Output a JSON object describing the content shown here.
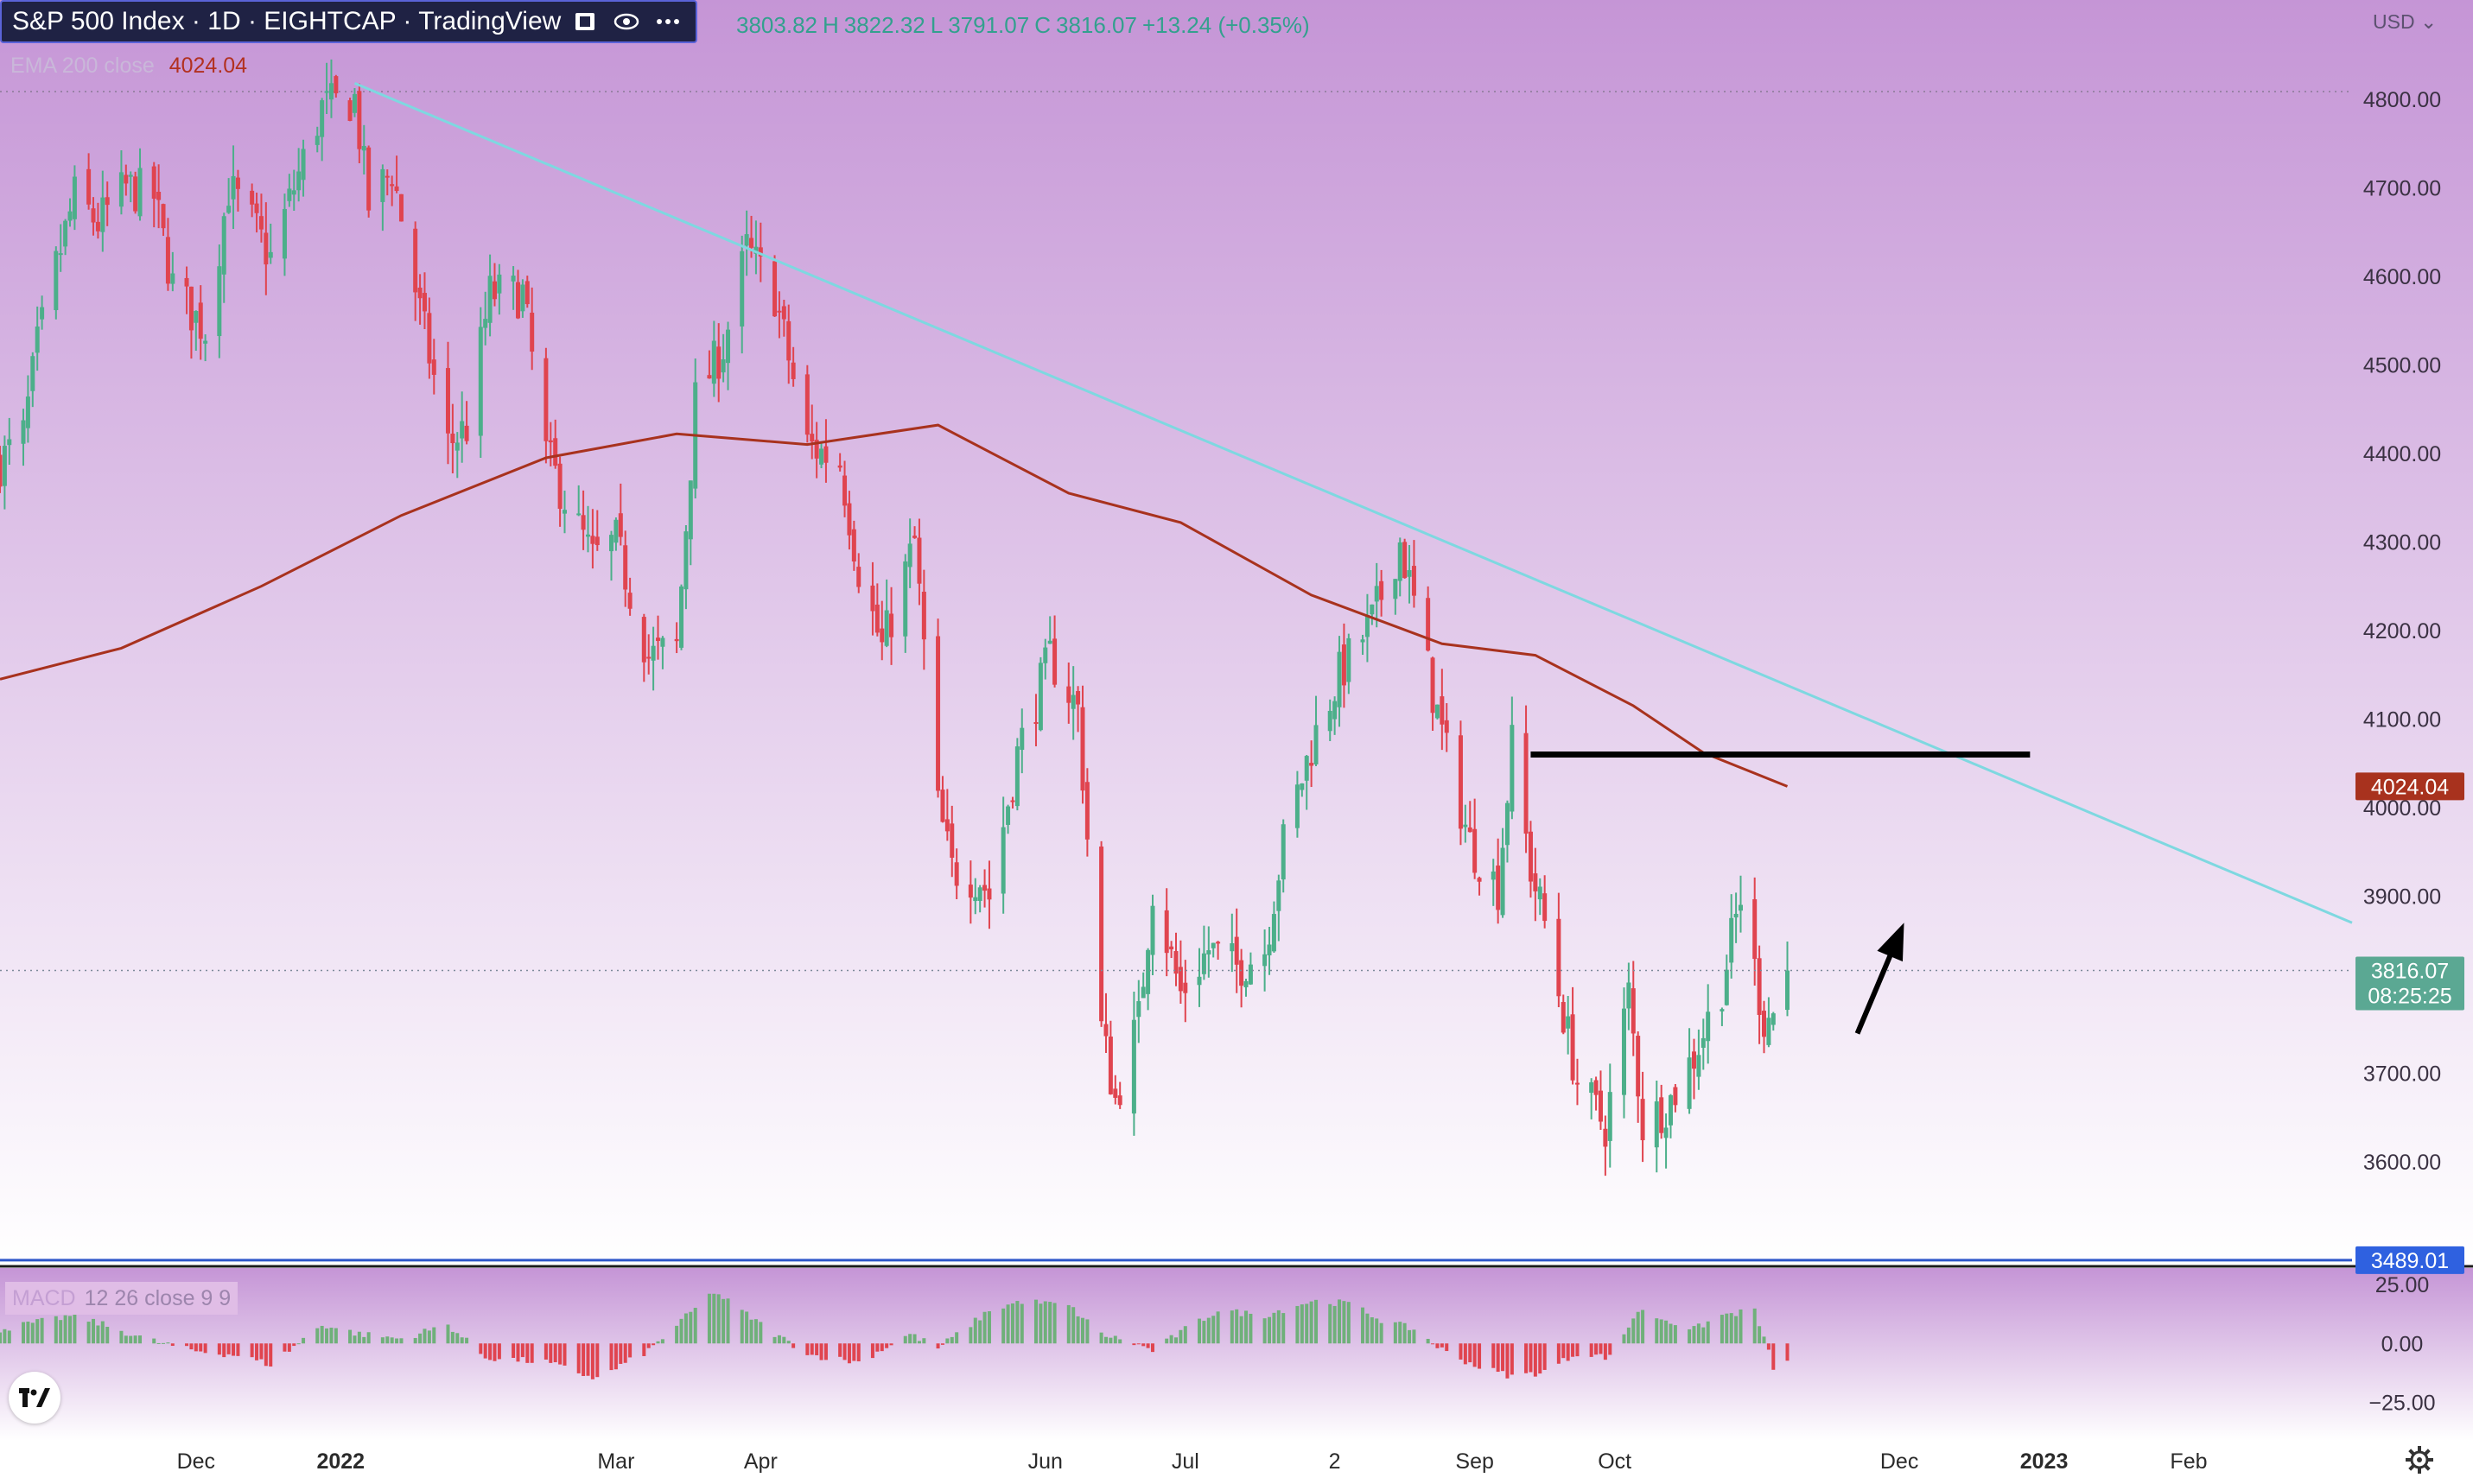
{
  "header": {
    "title": "S&P 500 Index · 1D · EIGHTCAP · TradingView",
    "icons": [
      "candle-style-icon",
      "eye-icon",
      "more-icon"
    ]
  },
  "ohlc": {
    "open_value": "3803.82",
    "high_value": "3822.32",
    "low_value": "3791.07",
    "close_value": "3816.07",
    "change": "+13.24 (+0.35%)"
  },
  "ema_legend": {
    "label": "EMA 200 close",
    "value": "4024.04"
  },
  "currency": "USD",
  "macd_legend": {
    "name": "MACD",
    "params": "12 26 close 9 9"
  },
  "colors": {
    "up": "#4caf8a",
    "down": "#e0444f",
    "ema": "#a8321e",
    "trendline": "#7ed8e0",
    "support": "#2e56c9",
    "resistance": "#000000",
    "bg_top": "#c595d6",
    "bg_bottom": "#ffffff"
  },
  "chart_data": {
    "type": "candlestick",
    "title": "S&P 500 Index · 1D · EIGHTCAP · TradingView",
    "x_tick_labels": [
      "Dec",
      "2022",
      "Mar",
      "Apr",
      "Jun",
      "Jul",
      "2",
      "Sep",
      "Oct",
      "Dec",
      "2023",
      "Feb"
    ],
    "x_tick_dates": [
      "2021-12-01",
      "2022-01-01",
      "2022-03-01",
      "2022-04-01",
      "2022-06-01",
      "2022-07-01",
      "2022-08-02",
      "2022-09-01",
      "2022-10-01",
      "2022-12-01",
      "2023-01-01",
      "2023-02-01"
    ],
    "xlim": [
      "2021-10-20",
      "2023-03-08"
    ],
    "y_ticks": [
      3600,
      3700,
      3800,
      3900,
      4000,
      4100,
      4200,
      4300,
      4400,
      4500,
      4600,
      4700,
      4800
    ],
    "y_tick_labels": [
      "3600.00",
      "3700.00",
      "3800.00",
      "3900.00",
      "4000.00",
      "4100.00",
      "4200.00",
      "4300.00",
      "4400.00",
      "4500.00",
      "4600.00",
      "4700.00",
      "4800.00"
    ],
    "ylim": [
      3483,
      4912
    ],
    "close_series": [
      [
        "2021-10-20",
        4390
      ],
      [
        "2021-10-25",
        4420
      ],
      [
        "2021-10-28",
        4520
      ],
      [
        "2021-11-01",
        4610
      ],
      [
        "2021-11-05",
        4690
      ],
      [
        "2021-11-10",
        4660
      ],
      [
        "2021-11-16",
        4700
      ],
      [
        "2021-11-22",
        4690
      ],
      [
        "2021-11-26",
        4590
      ],
      [
        "2021-11-30",
        4560
      ],
      [
        "2021-12-03",
        4540
      ],
      [
        "2021-12-08",
        4700
      ],
      [
        "2021-12-13",
        4660
      ],
      [
        "2021-12-17",
        4620
      ],
      [
        "2021-12-22",
        4700
      ],
      [
        "2021-12-28",
        4790
      ],
      [
        "2022-01-04",
        4800
      ],
      [
        "2022-01-07",
        4680
      ],
      [
        "2022-01-12",
        4720
      ],
      [
        "2022-01-18",
        4560
      ],
      [
        "2022-01-24",
        4410
      ],
      [
        "2022-01-28",
        4430
      ],
      [
        "2022-02-02",
        4580
      ],
      [
        "2022-02-09",
        4580
      ],
      [
        "2022-02-14",
        4400
      ],
      [
        "2022-02-18",
        4350
      ],
      [
        "2022-02-24",
        4280
      ],
      [
        "2022-03-01",
        4300
      ],
      [
        "2022-03-08",
        4170
      ],
      [
        "2022-03-14",
        4180
      ],
      [
        "2022-03-18",
        4460
      ],
      [
        "2022-03-24",
        4520
      ],
      [
        "2022-03-29",
        4630
      ],
      [
        "2022-04-04",
        4580
      ],
      [
        "2022-04-11",
        4410
      ],
      [
        "2022-04-18",
        4390
      ],
      [
        "2022-04-22",
        4270
      ],
      [
        "2022-04-27",
        4180
      ],
      [
        "2022-05-04",
        4300
      ],
      [
        "2022-05-09",
        4000
      ],
      [
        "2022-05-12",
        3930
      ],
      [
        "2022-05-18",
        3920
      ],
      [
        "2022-05-20",
        3900
      ],
      [
        "2022-05-26",
        4060
      ],
      [
        "2022-06-02",
        4170
      ],
      [
        "2022-06-08",
        4110
      ],
      [
        "2022-06-13",
        3750
      ],
      [
        "2022-06-16",
        3670
      ],
      [
        "2022-06-21",
        3760
      ],
      [
        "2022-06-24",
        3910
      ],
      [
        "2022-06-30",
        3790
      ],
      [
        "2022-07-06",
        3840
      ],
      [
        "2022-07-12",
        3820
      ],
      [
        "2022-07-18",
        3840
      ],
      [
        "2022-07-22",
        3960
      ],
      [
        "2022-07-28",
        4070
      ],
      [
        "2022-08-03",
        4150
      ],
      [
        "2022-08-10",
        4210
      ],
      [
        "2022-08-16",
        4300
      ],
      [
        "2022-08-19",
        4230
      ],
      [
        "2022-08-23",
        4130
      ],
      [
        "2022-08-26",
        4060
      ],
      [
        "2022-08-31",
        3960
      ],
      [
        "2022-09-06",
        3910
      ],
      [
        "2022-09-09",
        4070
      ],
      [
        "2022-09-13",
        3930
      ],
      [
        "2022-09-16",
        3870
      ],
      [
        "2022-09-23",
        3690
      ],
      [
        "2022-09-29",
        3640
      ],
      [
        "2022-10-04",
        3790
      ],
      [
        "2022-10-07",
        3640
      ],
      [
        "2022-10-13",
        3670
      ],
      [
        "2022-10-18",
        3720
      ],
      [
        "2022-10-24",
        3800
      ],
      [
        "2022-10-28",
        3900
      ],
      [
        "2022-11-02",
        3760
      ],
      [
        "2022-11-04",
        3770
      ],
      [
        "2022-11-07",
        3816
      ]
    ],
    "ema200": {
      "name": "EMA 200 close",
      "points": [
        [
          "2021-10-20",
          4145
        ],
        [
          "2021-11-15",
          4180
        ],
        [
          "2021-12-15",
          4250
        ],
        [
          "2022-01-14",
          4330
        ],
        [
          "2022-02-14",
          4395
        ],
        [
          "2022-03-14",
          4422
        ],
        [
          "2022-04-11",
          4410
        ],
        [
          "2022-05-09",
          4432
        ],
        [
          "2022-06-06",
          4355
        ],
        [
          "2022-06-30",
          4322
        ],
        [
          "2022-07-28",
          4240
        ],
        [
          "2022-08-25",
          4185
        ],
        [
          "2022-09-14",
          4172
        ],
        [
          "2022-10-05",
          4115
        ],
        [
          "2022-10-20",
          4062
        ],
        [
          "2022-11-07",
          4024
        ]
      ],
      "last_value": 4024.04
    },
    "trendline": {
      "start": [
        "2022-01-04",
        4818
      ],
      "end": [
        "2023-03-08",
        3870
      ]
    },
    "resistance_line": {
      "start": [
        "2022-09-13",
        4060
      ],
      "end": [
        "2022-12-29",
        4060
      ]
    },
    "support_line": {
      "value": 3489.01
    },
    "last_close": 3816.07,
    "countdown": "08:25:25",
    "arrow": {
      "from": [
        "2022-11-22",
        3745
      ],
      "to": [
        "2022-12-02",
        3870
      ]
    },
    "price_labels": {
      "ema": "4024.04",
      "close": "3816.07",
      "support": "3489.01"
    },
    "macd": {
      "ticks": [
        25,
        0,
        -25
      ],
      "tick_labels": [
        "25.00",
        "0.00",
        "−25.00"
      ],
      "ylim": [
        -34,
        32
      ],
      "histogram": [
        [
          "2021-10-20",
          6
        ],
        [
          "2021-11-05",
          12
        ],
        [
          "2021-11-20",
          2
        ],
        [
          "2021-11-30",
          -3
        ],
        [
          "2021-12-10",
          -5
        ],
        [
          "2021-12-17",
          -9
        ],
        [
          "2021-12-28",
          8
        ],
        [
          "2022-01-05",
          4
        ],
        [
          "2022-01-14",
          2
        ],
        [
          "2022-01-24",
          8
        ],
        [
          "2022-02-01",
          -6
        ],
        [
          "2022-02-14",
          -8
        ],
        [
          "2022-02-25",
          -15
        ],
        [
          "2022-03-08",
          -3
        ],
        [
          "2022-03-22",
          22
        ],
        [
          "2022-04-04",
          4
        ],
        [
          "2022-04-12",
          -5
        ],
        [
          "2022-04-22",
          -8
        ],
        [
          "2022-05-03",
          4
        ],
        [
          "2022-05-09",
          -2
        ],
        [
          "2022-05-16",
          8
        ],
        [
          "2022-05-20",
          14
        ],
        [
          "2022-05-27",
          18
        ],
        [
          "2022-06-06",
          16
        ],
        [
          "2022-06-13",
          4
        ],
        [
          "2022-06-20",
          0
        ],
        [
          "2022-06-24",
          -3
        ],
        [
          "2022-07-01",
          6
        ],
        [
          "2022-07-08",
          14
        ],
        [
          "2022-07-18",
          12
        ],
        [
          "2022-07-28",
          18
        ],
        [
          "2022-08-05",
          17
        ],
        [
          "2022-08-12",
          10
        ],
        [
          "2022-08-19",
          6
        ],
        [
          "2022-08-26",
          -4
        ],
        [
          "2022-09-02",
          -10
        ],
        [
          "2022-09-09",
          -14
        ],
        [
          "2022-09-16",
          -12
        ],
        [
          "2022-09-23",
          -4
        ],
        [
          "2022-09-30",
          -6
        ],
        [
          "2022-10-06",
          14
        ],
        [
          "2022-10-12",
          10
        ],
        [
          "2022-10-18",
          6
        ],
        [
          "2022-10-24",
          12
        ],
        [
          "2022-10-31",
          14
        ],
        [
          "2022-11-04",
          -10
        ],
        [
          "2022-11-07",
          -8
        ]
      ]
    }
  }
}
